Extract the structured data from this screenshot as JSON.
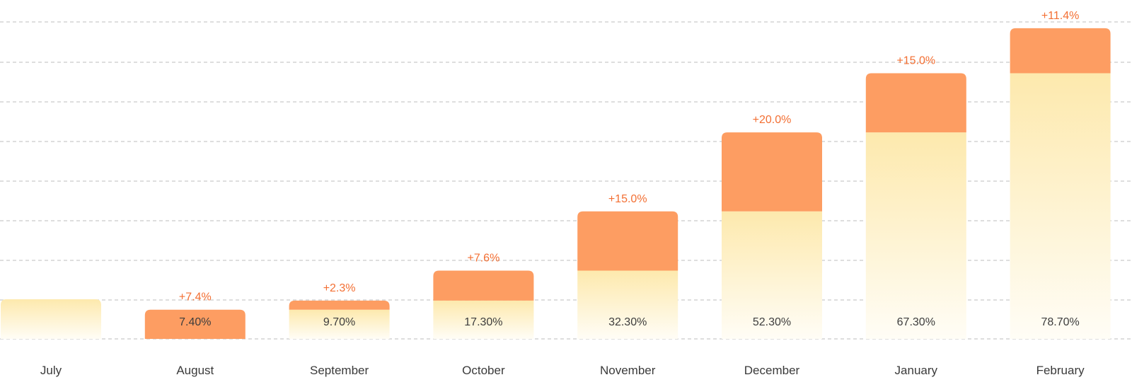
{
  "colors": {
    "base_top": "#fde9ad",
    "base_bottom": "#fffdf6",
    "delta": "#fd9d62",
    "delta_text": "#f36f33",
    "grid": "#d4d4d4"
  },
  "chart_data": {
    "type": "bar",
    "stacked": true,
    "grid": true,
    "ylim": [
      0,
      80
    ],
    "categories": [
      "July",
      "August",
      "September",
      "October",
      "November",
      "December",
      "January",
      "February"
    ],
    "value_labels": [
      "",
      "7.40%",
      "9.70%",
      "17.30%",
      "32.30%",
      "52.30%",
      "67.30%",
      "78.70%"
    ],
    "delta_labels": [
      "",
      "+7.4%",
      "+2.3%",
      "+7.6%",
      "+15.0%",
      "+20.0%",
      "+15.0%",
      "+11.4%"
    ],
    "series": [
      {
        "role": "base",
        "values": [
          0,
          0,
          7.4,
          9.7,
          17.3,
          32.3,
          52.3,
          67.3
        ]
      },
      {
        "role": "increase",
        "values": [
          0,
          7.4,
          2.3,
          7.6,
          15.0,
          20.0,
          15.0,
          11.4
        ]
      }
    ]
  }
}
